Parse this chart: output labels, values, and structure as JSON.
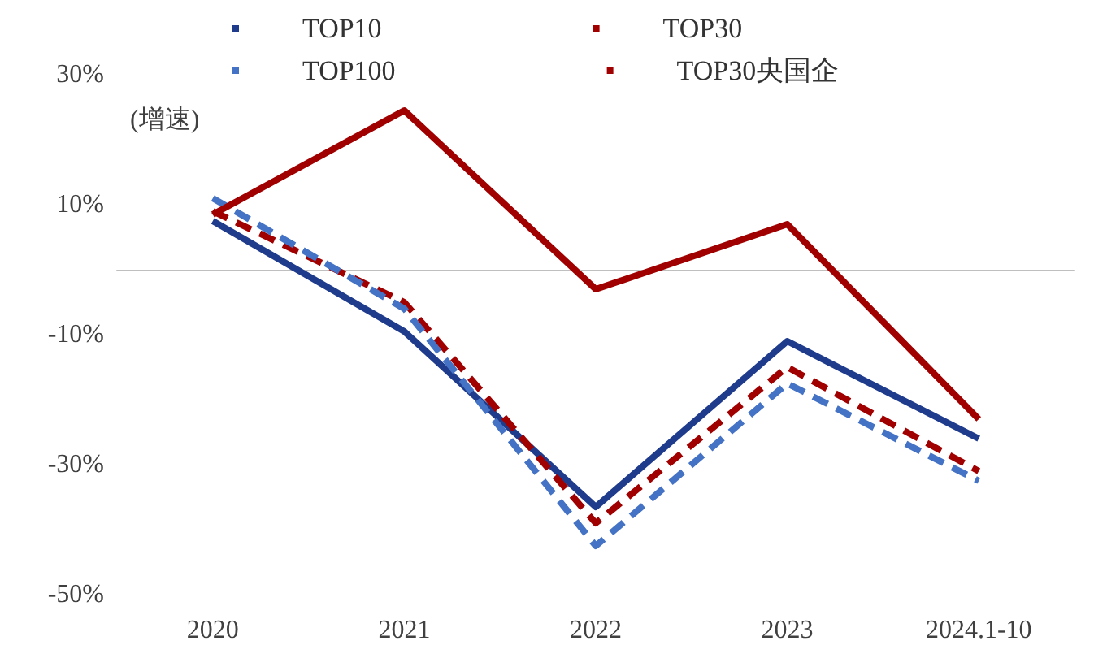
{
  "chart_data": {
    "type": "line",
    "categories": [
      "2020",
      "2021",
      "2022",
      "2023",
      "2024.1-10"
    ],
    "series": [
      {
        "name": "TOP10",
        "color": "#1f3b8c",
        "line_style": "solid",
        "values": [
          7.5,
          -9.5,
          -36.5,
          -11,
          -26
        ]
      },
      {
        "name": "TOP30",
        "color": "#a00000",
        "line_style": "dashed",
        "values": [
          9,
          -5,
          -39,
          -15,
          -31
        ]
      },
      {
        "name": "TOP100",
        "color": "#4472c4",
        "line_style": "dashed",
        "values": [
          11,
          -6,
          -42.5,
          -17.5,
          -32.5
        ]
      },
      {
        "name": "TOP30央国企",
        "color": "#a00000",
        "line_style": "solid",
        "values": [
          8.5,
          24.5,
          -3,
          7,
          -23
        ]
      }
    ],
    "ylim": [
      -50,
      30
    ],
    "yticks": [
      {
        "value": -50,
        "label": "-50%"
      },
      {
        "value": -30,
        "label": "-30%"
      },
      {
        "value": -10,
        "label": "-10%"
      },
      {
        "value": 10,
        "label": "10%"
      },
      {
        "value": 30,
        "label": "30%"
      }
    ],
    "annotations": [
      "(增速)"
    ],
    "grid": false,
    "legend": "top",
    "marker": "none"
  }
}
